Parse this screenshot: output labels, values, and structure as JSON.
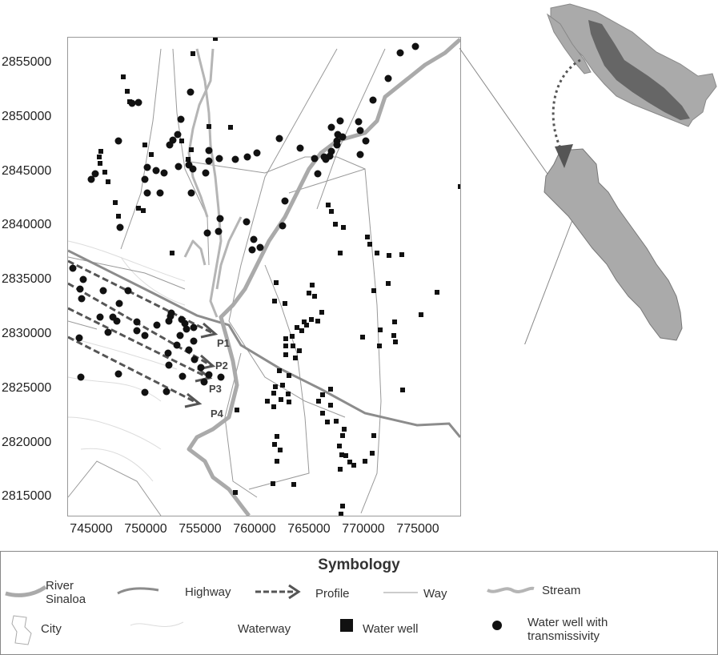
{
  "map": {
    "y_ticks": [
      "2855000",
      "2850000",
      "2845000",
      "2840000",
      "2835000",
      "2830000",
      "2825000",
      "2820000",
      "2815000"
    ],
    "x_ticks": [
      "745000",
      "750000",
      "755000",
      "760000",
      "765000",
      "770000",
      "775000"
    ],
    "profiles": [
      "P1",
      "P2",
      "P3",
      "P4"
    ]
  },
  "legend": {
    "title": "Symbology",
    "river_line1": "River",
    "river_line2": "Sinaloa",
    "highway": "Highway",
    "profile": "Profile",
    "way": "Way",
    "stream": "Stream",
    "city": "City",
    "waterway": "Waterway",
    "water_well": "Water well",
    "well_trans_line1": "Water well with",
    "well_trans_line2": "transmissivity"
  },
  "colors": {
    "river": "#aaaaaa",
    "highway": "#8c8c8c",
    "profile": "#555555",
    "way": "#999999",
    "inset_country": "#aaaaaa",
    "inset_region": "#666666"
  }
}
